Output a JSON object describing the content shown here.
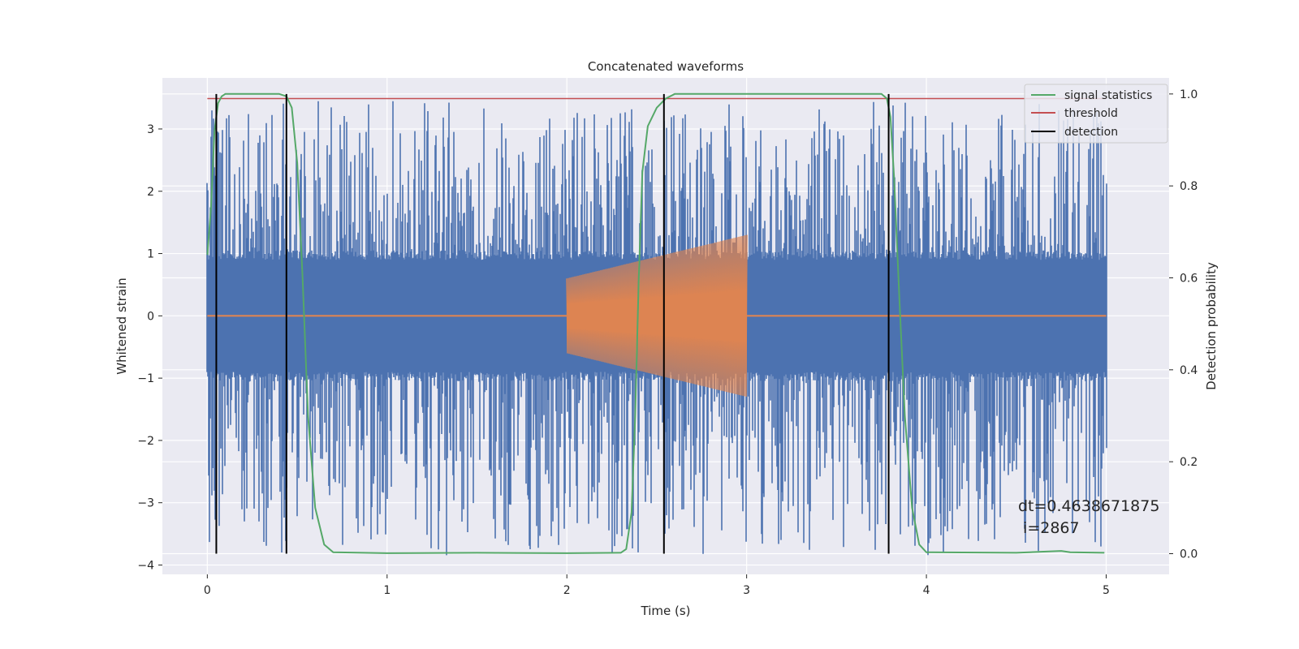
{
  "chart_data": {
    "type": "line",
    "title": "Concatenated waveforms",
    "xlabel": "Time (s)",
    "ylabel": "Whitened strain",
    "y2label": "Detection probability",
    "xlim": [
      -0.25,
      5.35
    ],
    "ylim": [
      -4.15,
      3.82
    ],
    "y2lim": [
      -0.045,
      1.035
    ],
    "xticks": [
      0,
      1,
      2,
      3,
      4,
      5
    ],
    "yticks": [
      -4,
      -3,
      -2,
      -1,
      0,
      1,
      2,
      3
    ],
    "y2ticks": [
      0.0,
      0.2,
      0.4,
      0.6,
      0.8,
      1.0
    ],
    "xtick_labels": [
      "0",
      "1",
      "2",
      "3",
      "4",
      "5"
    ],
    "ytick_labels": [
      "−4",
      "−3",
      "−2",
      "−1",
      "0",
      "1",
      "2",
      "3"
    ],
    "y2tick_labels": [
      "0.0",
      "0.2",
      "0.4",
      "0.6",
      "0.8",
      "1.0"
    ],
    "grid": true,
    "legend_position": "top-right",
    "colors": {
      "strain": "#4c72b0",
      "injected": "#dd8452",
      "signal_statistics": "#55a868",
      "threshold": "#c44e52",
      "detection": "#000000",
      "background": "#eaeaf2",
      "grid": "#ffffff"
    },
    "strain": {
      "x_range": [
        0,
        5
      ],
      "amplitude_band": [
        -0.9,
        0.9
      ],
      "peak_range": [
        -3.85,
        3.45
      ]
    },
    "injected_signal": {
      "x_range": [
        2.0,
        3.0
      ],
      "amplitude_start": 0.6,
      "amplitude_end": 1.3
    },
    "series": [
      {
        "name": "signal statistics",
        "axis": "right",
        "x": [
          0,
          0.02,
          0.04,
          0.06,
          0.08,
          0.1,
          0.2,
          0.3,
          0.4,
          0.44,
          0.47,
          0.5,
          0.53,
          0.56,
          0.6,
          0.65,
          0.7,
          1.0,
          1.5,
          2.0,
          2.3,
          2.33,
          2.36,
          2.38,
          2.4,
          2.42,
          2.45,
          2.5,
          2.55,
          2.6,
          3.0,
          3.5,
          3.75,
          3.78,
          3.8,
          3.82,
          3.85,
          3.88,
          3.92,
          3.96,
          4.0,
          4.5,
          4.75,
          4.8,
          4.99
        ],
        "y": [
          0.65,
          0.75,
          0.92,
          0.98,
          0.995,
          1.0,
          1.0,
          1.0,
          1.0,
          0.995,
          0.97,
          0.85,
          0.6,
          0.3,
          0.1,
          0.02,
          0.003,
          0.001,
          0.002,
          0.001,
          0.002,
          0.01,
          0.09,
          0.3,
          0.6,
          0.83,
          0.93,
          0.97,
          0.99,
          1.0,
          1.0,
          1.0,
          1.0,
          0.99,
          0.95,
          0.82,
          0.55,
          0.3,
          0.1,
          0.02,
          0.003,
          0.002,
          0.006,
          0.003,
          0.002
        ]
      },
      {
        "name": "threshold",
        "axis": "right",
        "x": [
          0,
          5
        ],
        "y": [
          0.99,
          0.99
        ]
      },
      {
        "name": "detection",
        "axis": "right",
        "type": "vlines",
        "x": [
          0.05,
          0.44,
          2.54,
          3.79
        ],
        "y_range": [
          0.0,
          1.0
        ]
      }
    ],
    "annotation": {
      "x": 4.5,
      "y": -3.0,
      "lines": [
        "dt=0.4638671875",
        " i=2867"
      ]
    }
  }
}
